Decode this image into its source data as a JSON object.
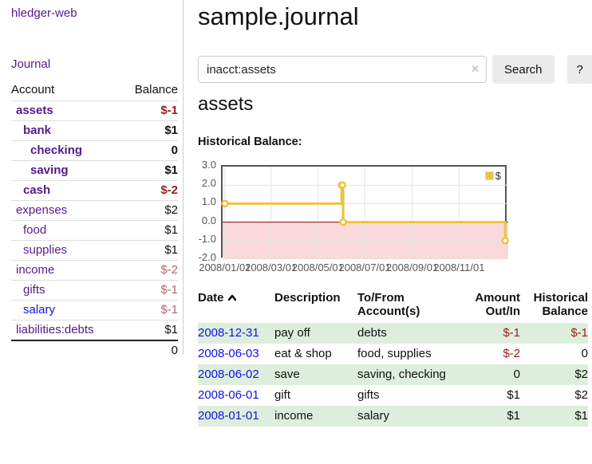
{
  "app": {
    "brand": "hledger-web"
  },
  "sidebar": {
    "journal_link": "Journal",
    "table": {
      "col_account": "Account",
      "col_balance": "Balance",
      "rows": [
        {
          "name": "assets",
          "balance": "$-1"
        },
        {
          "name": "bank",
          "balance": "$1"
        },
        {
          "name": "checking",
          "balance": "0"
        },
        {
          "name": "saving",
          "balance": "$1"
        },
        {
          "name": "cash",
          "balance": "$-2"
        },
        {
          "name": "expenses",
          "balance": "$2"
        },
        {
          "name": "food",
          "balance": "$1"
        },
        {
          "name": "supplies",
          "balance": "$1"
        },
        {
          "name": "income",
          "balance": "$-2"
        },
        {
          "name": "gifts",
          "balance": "$-1"
        },
        {
          "name": "salary",
          "balance": "$-1"
        },
        {
          "name": "liabilities:debts",
          "balance": "$1"
        }
      ],
      "total": "0"
    }
  },
  "main": {
    "title": "sample.journal",
    "search": {
      "value": "inacct:assets",
      "clear_icon": "✕",
      "submit_label": "Search",
      "help_label": "?"
    },
    "account_heading": "assets",
    "chart_heading": "Historical Balance:"
  },
  "chart_data": {
    "type": "line",
    "title": "Historical Balance:",
    "step": true,
    "series": [
      {
        "name": "$",
        "points": [
          [
            "2008-01-01",
            1
          ],
          [
            "2008-06-01",
            2
          ],
          [
            "2008-06-02",
            2
          ],
          [
            "2008-06-03",
            0
          ],
          [
            "2008-12-31",
            -1
          ]
        ]
      }
    ],
    "xticks": [
      "2008/01/01",
      "2008/03/01",
      "2008/05/01",
      "2008/07/01",
      "2008/09/01",
      "2008/11/01"
    ],
    "yticks": [
      "3.0",
      "2.0",
      "1.0",
      "0.0",
      "-1.0",
      "-2.0"
    ],
    "ylim": [
      -2,
      3
    ],
    "x_range": [
      "2007-12-29",
      "2009-01-04"
    ],
    "legend": {
      "label": "$",
      "position": "top-right"
    },
    "grid": true,
    "colors": {
      "line": "#edc240",
      "negative_region": "#f9d9d9",
      "zero_line": "#8b0000",
      "gridline": "#e3e3e3"
    }
  },
  "register": {
    "headers": {
      "date": "Date",
      "description": "Description",
      "accounts": "To/From Account(s)",
      "amount": "Amount Out/In",
      "historical": "Historical Balance"
    },
    "rows": [
      {
        "date": "2008-12-31",
        "description": "pay off",
        "accounts": "debts",
        "amount": "$-1",
        "balance": "$-1"
      },
      {
        "date": "2008-06-03",
        "description": "eat & shop",
        "accounts": "food, supplies",
        "amount": "$-2",
        "balance": "0"
      },
      {
        "date": "2008-06-02",
        "description": "save",
        "accounts": "saving, checking",
        "amount": "0",
        "balance": "$2"
      },
      {
        "date": "2008-06-01",
        "description": "gift",
        "accounts": "gifts",
        "amount": "$1",
        "balance": "$2"
      },
      {
        "date": "2008-01-01",
        "description": "income",
        "accounts": "salary",
        "amount": "$1",
        "balance": "$1"
      }
    ]
  }
}
